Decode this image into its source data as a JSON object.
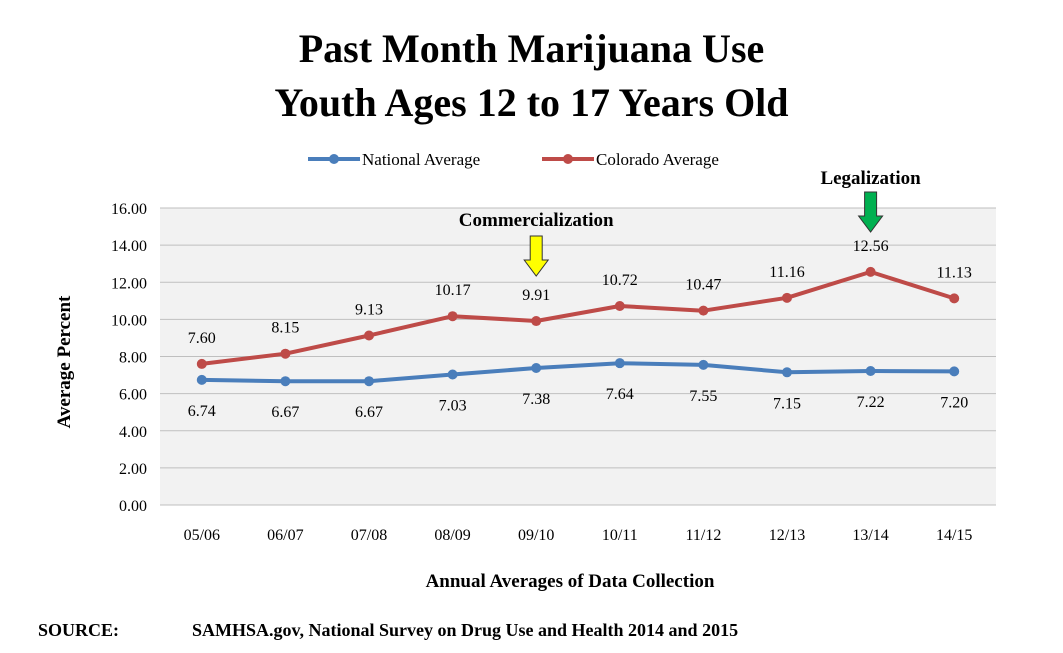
{
  "chart_data": {
    "type": "line",
    "title": [
      "Past Month Marijuana Use",
      "Youth Ages 12 to 17 Years Old"
    ],
    "xlabel": "Annual Averages of Data Collection",
    "ylabel": "Average Percent",
    "ylim": [
      0,
      16
    ],
    "yticks": [
      "0.00",
      "2.00",
      "4.00",
      "6.00",
      "8.00",
      "10.00",
      "12.00",
      "14.00",
      "16.00"
    ],
    "categories": [
      "05/06",
      "06/07",
      "07/08",
      "08/09",
      "09/10",
      "10/11",
      "11/12",
      "12/13",
      "13/14",
      "14/15"
    ],
    "series": [
      {
        "name": "National Average",
        "color": "#4a7ebb",
        "values": [
          6.74,
          6.67,
          6.67,
          7.03,
          7.38,
          7.64,
          7.55,
          7.15,
          7.22,
          7.2
        ],
        "labels": [
          "6.74",
          "6.67",
          "6.67",
          "7.03",
          "7.38",
          "7.64",
          "7.55",
          "7.15",
          "7.22",
          "7.20"
        ],
        "label_position": "below"
      },
      {
        "name": "Colorado Average",
        "color": "#be4b48",
        "values": [
          7.6,
          8.15,
          9.13,
          10.17,
          9.91,
          10.72,
          10.47,
          11.16,
          12.56,
          11.13
        ],
        "labels": [
          "7.60",
          "8.15",
          "9.13",
          "10.17",
          "9.91",
          "10.72",
          "10.47",
          "11.16",
          "12.56",
          "11.13"
        ],
        "label_position": "above"
      }
    ],
    "annotations": [
      {
        "text": "Commercialization",
        "category": "09/10",
        "arrow_color": "#ffff00"
      },
      {
        "text": "Legalization",
        "category": "13/14",
        "arrow_color": "#00b050"
      }
    ],
    "grid": true,
    "legend_position": "top"
  },
  "source": {
    "label": "SOURCE:",
    "text": "SAMHSA.gov, National Survey on Drug Use and Health 2014 and 2015"
  }
}
